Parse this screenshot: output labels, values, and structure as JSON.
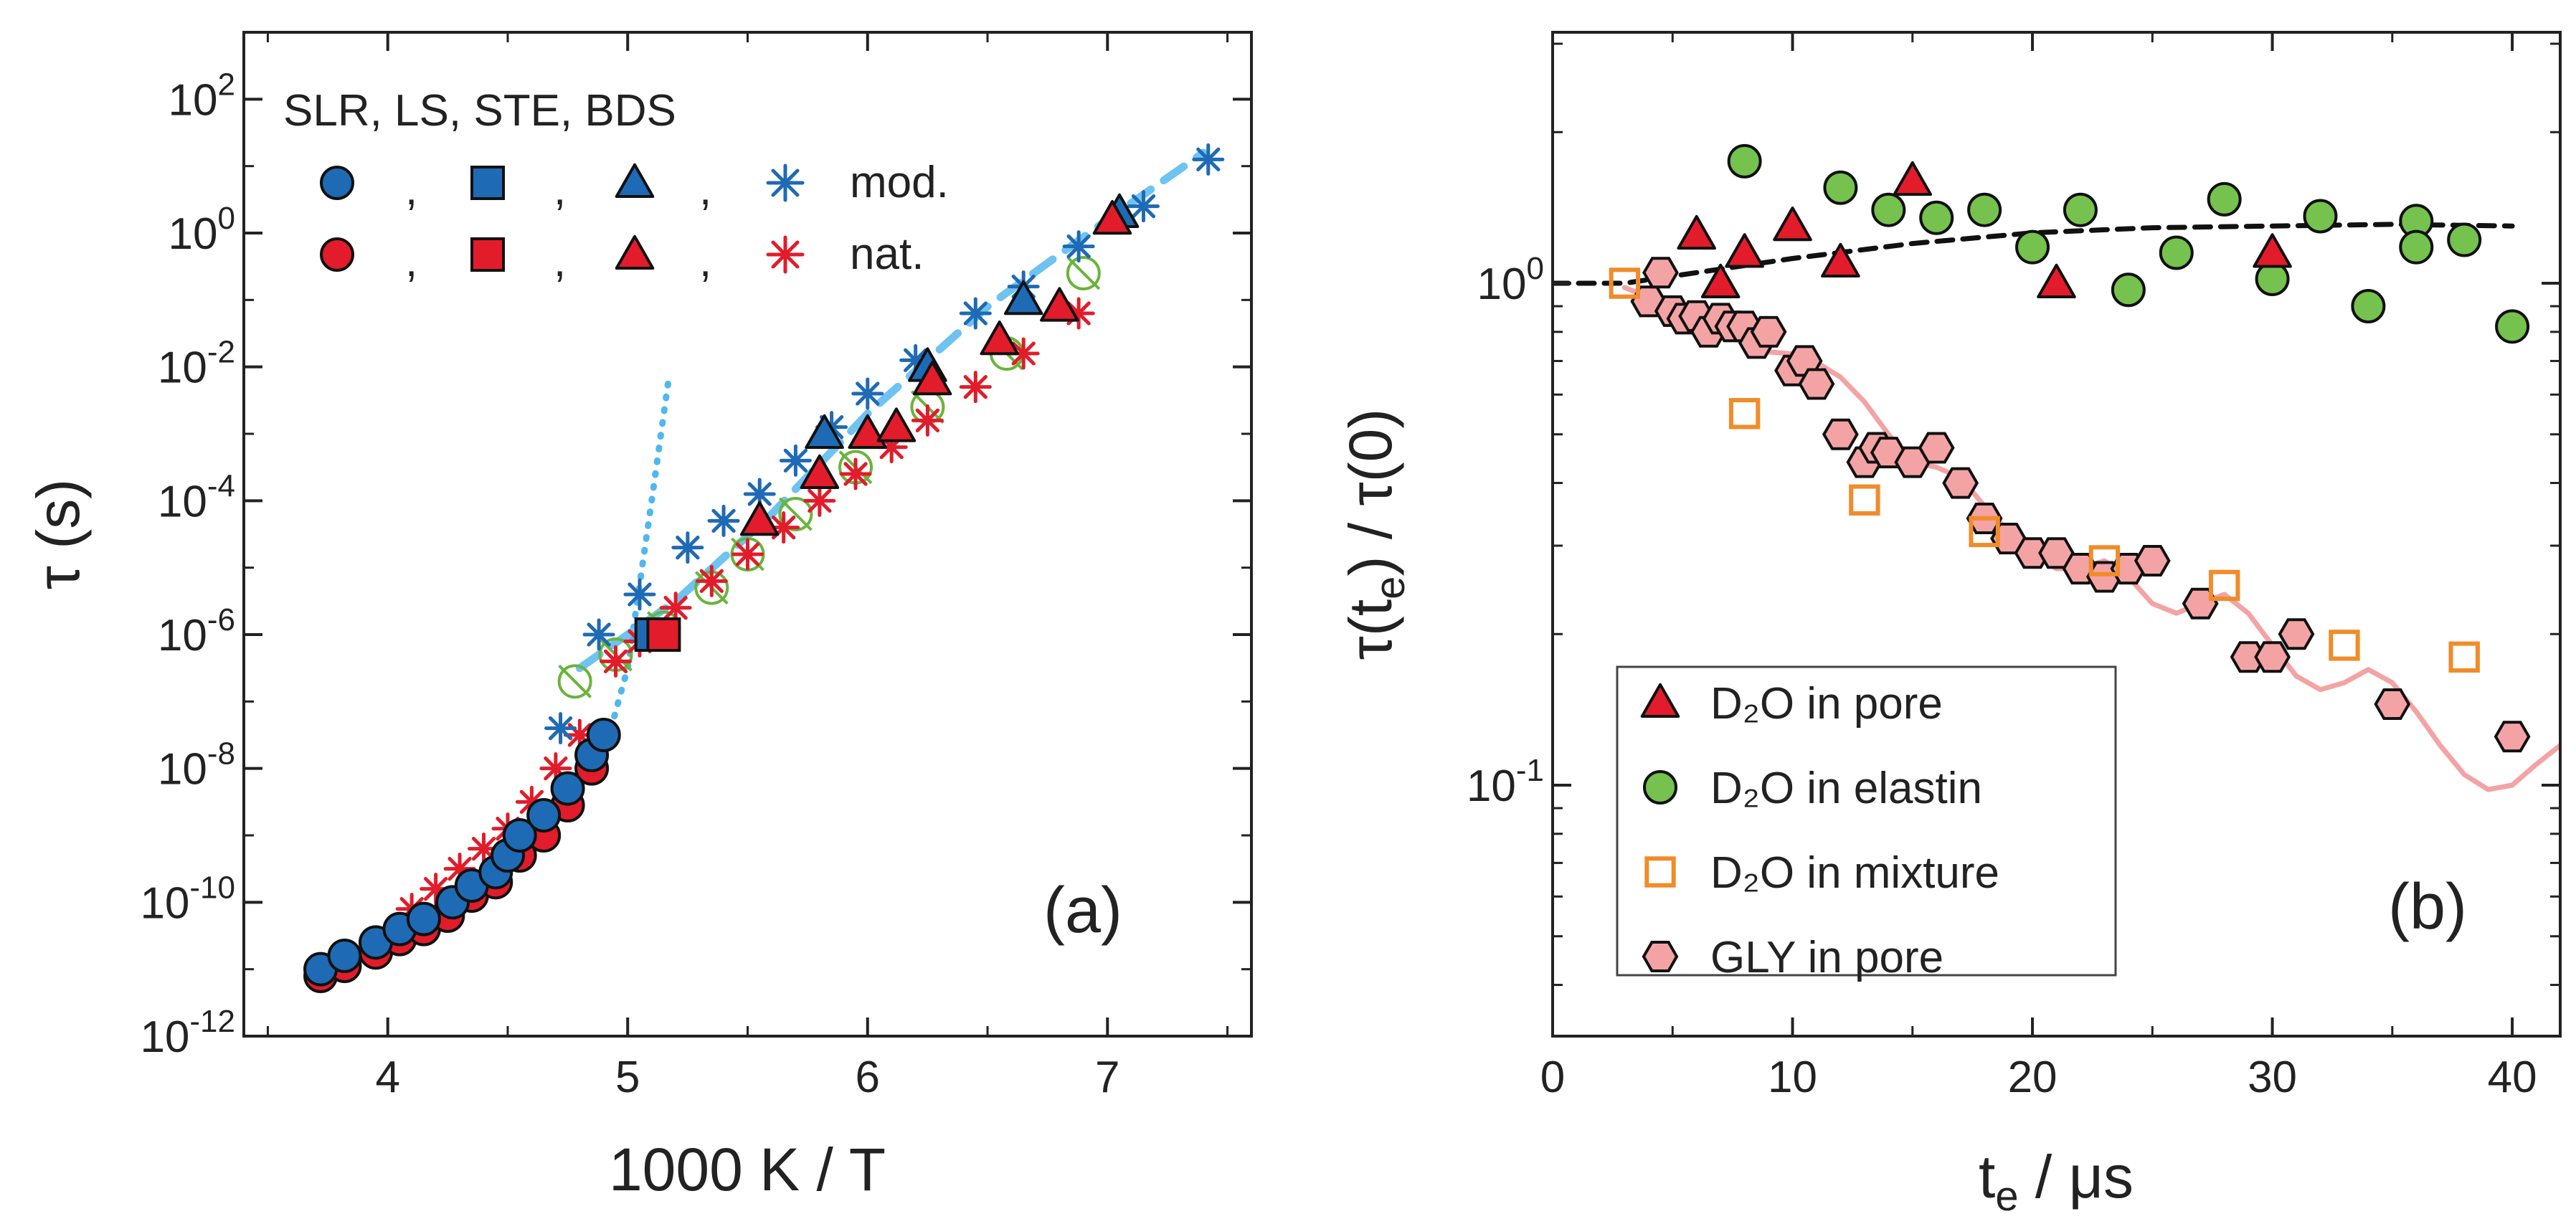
{
  "chart_data": [
    {
      "type": "scatter",
      "panel_label": "(a)",
      "xlabel": "1000 K / T",
      "ylabel": "τ (s)",
      "xlim": [
        3.4,
        7.6
      ],
      "ylim_log10": [
        -12,
        3
      ],
      "y_scale": "log",
      "x_ticks": [
        4,
        5,
        6,
        7
      ],
      "x_tick_labels": [
        "4",
        "5",
        "6",
        "7"
      ],
      "y_ticks_log10": [
        -12,
        -10,
        -8,
        -6,
        -4,
        -2,
        0,
        2
      ],
      "y_tick_labels": [
        {
          "base": "10",
          "exp": "-12"
        },
        {
          "base": "10",
          "exp": "-10"
        },
        {
          "base": "10",
          "exp": "-8"
        },
        {
          "base": "10",
          "exp": "-6"
        },
        {
          "base": "10",
          "exp": "-4"
        },
        {
          "base": "10",
          "exp": "-2"
        },
        {
          "base": "10",
          "exp": "0"
        },
        {
          "base": "10",
          "exp": "2"
        }
      ],
      "legend": {
        "header": "SLR,  LS,  STE,  BDS",
        "separators": [
          ",",
          ",",
          ","
        ],
        "rows": [
          {
            "label": "mod.",
            "color": "#1f6ab4"
          },
          {
            "label": "nat.",
            "color": "#e21c2a"
          }
        ]
      },
      "series": [
        {
          "name": "SLR mod.",
          "marker": "circle",
          "color": "#1f6ab4",
          "points": [
            [
              3.72,
              -11.0
            ],
            [
              3.82,
              -10.8
            ],
            [
              3.95,
              -10.6
            ],
            [
              4.05,
              -10.4
            ],
            [
              4.15,
              -10.25
            ],
            [
              4.27,
              -10.0
            ],
            [
              4.35,
              -9.75
            ],
            [
              4.45,
              -9.55
            ],
            [
              4.5,
              -9.3
            ],
            [
              4.55,
              -9.0
            ],
            [
              4.65,
              -8.7
            ],
            [
              4.75,
              -8.3
            ],
            [
              4.85,
              -7.8
            ],
            [
              4.9,
              -7.5
            ]
          ]
        },
        {
          "name": "SLR nat.",
          "marker": "circle",
          "color": "#e21c2a",
          "points": [
            [
              3.72,
              -11.1
            ],
            [
              3.82,
              -10.95
            ],
            [
              3.95,
              -10.75
            ],
            [
              4.05,
              -10.55
            ],
            [
              4.15,
              -10.4
            ],
            [
              4.25,
              -10.2
            ],
            [
              4.35,
              -9.9
            ],
            [
              4.45,
              -9.7
            ],
            [
              4.55,
              -9.3
            ],
            [
              4.65,
              -9.0
            ],
            [
              4.75,
              -8.55
            ],
            [
              4.85,
              -8.0
            ]
          ]
        },
        {
          "name": "LS mod.",
          "marker": "square",
          "color": "#1f6ab4",
          "points": [
            [
              5.1,
              -6.0
            ]
          ]
        },
        {
          "name": "LS nat.",
          "marker": "square",
          "color": "#e21c2a",
          "points": [
            [
              5.15,
              -6.0
            ]
          ]
        },
        {
          "name": "STE mod.",
          "marker": "triangle",
          "color": "#1f6ab4",
          "points": [
            [
              5.82,
              -3.0
            ],
            [
              6.25,
              -2.0
            ],
            [
              6.65,
              -1.0
            ],
            [
              7.05,
              0.3
            ]
          ]
        },
        {
          "name": "STE nat.",
          "marker": "triangle",
          "color": "#e21c2a",
          "points": [
            [
              5.55,
              -4.3
            ],
            [
              5.8,
              -3.6
            ],
            [
              6.0,
              -3.0
            ],
            [
              6.12,
              -2.9
            ],
            [
              6.27,
              -2.2
            ],
            [
              6.55,
              -1.6
            ],
            [
              6.8,
              -1.1
            ],
            [
              7.02,
              0.2
            ]
          ]
        },
        {
          "name": "BDS mod.",
          "marker": "asterisk",
          "color": "#1f6ab4",
          "points": [
            [
              4.72,
              -7.4
            ],
            [
              4.88,
              -6.0
            ],
            [
              5.05,
              -5.4
            ],
            [
              5.25,
              -4.7
            ],
            [
              5.4,
              -4.3
            ],
            [
              5.55,
              -3.9
            ],
            [
              5.7,
              -3.4
            ],
            [
              5.85,
              -2.9
            ],
            [
              6.0,
              -2.4
            ],
            [
              6.2,
              -1.9
            ],
            [
              6.45,
              -1.2
            ],
            [
              6.65,
              -0.8
            ],
            [
              6.88,
              -0.2
            ],
            [
              7.15,
              0.4
            ],
            [
              7.42,
              1.1
            ]
          ]
        },
        {
          "name": "BDS nat.",
          "marker": "asterisk",
          "color": "#e21c2a",
          "points": [
            [
              4.1,
              -10.1
            ],
            [
              4.2,
              -9.8
            ],
            [
              4.3,
              -9.5
            ],
            [
              4.4,
              -9.2
            ],
            [
              4.5,
              -8.9
            ],
            [
              4.6,
              -8.5
            ],
            [
              4.7,
              -8.0
            ],
            [
              4.8,
              -7.5
            ],
            [
              4.95,
              -6.4
            ],
            [
              5.05,
              -6.1
            ],
            [
              5.2,
              -5.6
            ],
            [
              5.35,
              -5.2
            ],
            [
              5.5,
              -4.8
            ],
            [
              5.65,
              -4.4
            ],
            [
              5.8,
              -4.0
            ],
            [
              5.95,
              -3.6
            ],
            [
              6.1,
              -3.2
            ],
            [
              6.25,
              -2.8
            ],
            [
              6.45,
              -2.3
            ],
            [
              6.65,
              -1.8
            ],
            [
              6.88,
              -1.2
            ]
          ]
        },
        {
          "name": "additional (green open)",
          "marker": "open-circle-cross",
          "color": "#6ab43c",
          "points": [
            [
              4.78,
              -6.7
            ],
            [
              4.95,
              -6.3
            ],
            [
              5.15,
              -5.9
            ],
            [
              5.35,
              -5.3
            ],
            [
              5.5,
              -4.8
            ],
            [
              5.7,
              -4.2
            ],
            [
              5.95,
              -3.5
            ],
            [
              6.25,
              -2.6
            ],
            [
              6.58,
              -1.8
            ],
            [
              6.9,
              -0.6
            ]
          ]
        }
      ],
      "fits": [
        {
          "name": "dotted fit",
          "style": "dotted",
          "color": "#4fb8ef",
          "points": [
            [
              3.72,
              -11.0
            ],
            [
              4.2,
              -10.1
            ],
            [
              4.6,
              -9.1
            ],
            [
              4.9,
              -7.8
            ],
            [
              5.0,
              -6.5
            ],
            [
              5.1,
              -4.0
            ],
            [
              5.17,
              -2.2
            ]
          ]
        },
        {
          "name": "dashed fit",
          "style": "dashed",
          "color": "#6ec3f1",
          "points": [
            [
              4.8,
              -6.5
            ],
            [
              5.2,
              -5.5
            ],
            [
              5.6,
              -4.2
            ],
            [
              6.0,
              -2.7
            ],
            [
              6.5,
              -1.1
            ],
            [
              7.0,
              0.2
            ],
            [
              7.4,
              1.2
            ]
          ]
        }
      ]
    },
    {
      "type": "scatter",
      "panel_label": "(b)",
      "xlabel": "t_e / μs",
      "ylabel": "τ(t_e) / τ(0)",
      "xlim": [
        0,
        42
      ],
      "ylim_log10": [
        -1.5,
        0.5
      ],
      "y_scale": "log",
      "x_ticks": [
        0,
        10,
        20,
        30,
        40
      ],
      "x_tick_labels": [
        "0",
        "10",
        "20",
        "30",
        "40"
      ],
      "y_ticks_log10": [
        -1,
        0
      ],
      "y_tick_labels": [
        {
          "base": "10",
          "exp": "-1"
        },
        {
          "base": "10",
          "exp": "0"
        }
      ],
      "legend": {
        "entries": [
          {
            "marker": "triangle",
            "color": "#e21c2a",
            "label": "D₂O in pore"
          },
          {
            "marker": "circle",
            "color": "#75c24e",
            "label": "D₂O in elastin"
          },
          {
            "marker": "open-square",
            "color": "#f08c2a",
            "label": "D₂O in mixture"
          },
          {
            "marker": "hexagon",
            "color": "#f4a3a4",
            "label": "GLY in pore"
          }
        ]
      },
      "series": [
        {
          "name": "D₂O in pore",
          "marker": "triangle",
          "color": "#e21c2a",
          "points": [
            [
              6,
              1.25
            ],
            [
              7,
              1.0
            ],
            [
              8,
              1.15
            ],
            [
              10,
              1.3
            ],
            [
              12,
              1.1
            ],
            [
              15,
              1.6
            ],
            [
              21,
              1.0
            ],
            [
              30,
              1.15
            ]
          ]
        },
        {
          "name": "D₂O in elastin",
          "marker": "circle",
          "color": "#75c24e",
          "points": [
            [
              8,
              1.75
            ],
            [
              12,
              1.55
            ],
            [
              14,
              1.4
            ],
            [
              16,
              1.35
            ],
            [
              18,
              1.4
            ],
            [
              20,
              1.18
            ],
            [
              22,
              1.4
            ],
            [
              24,
              0.97
            ],
            [
              26,
              1.15
            ],
            [
              28,
              1.47
            ],
            [
              30,
              1.02
            ],
            [
              32,
              1.36
            ],
            [
              34,
              0.9
            ],
            [
              36,
              1.33
            ],
            [
              36,
              1.18
            ],
            [
              38,
              1.22
            ],
            [
              40,
              0.82
            ]
          ]
        },
        {
          "name": "D₂O in mixture",
          "marker": "open-square",
          "color": "#f08c2a",
          "points": [
            [
              3,
              1.0
            ],
            [
              8,
              0.55
            ],
            [
              13,
              0.37
            ],
            [
              18,
              0.32
            ],
            [
              23,
              0.28
            ],
            [
              28,
              0.25
            ],
            [
              33,
              0.19
            ],
            [
              38,
              0.18
            ]
          ]
        },
        {
          "name": "GLY in pore",
          "marker": "hexagon",
          "color": "#f4a3a4",
          "points": [
            [
              4,
              0.92
            ],
            [
              4.5,
              1.05
            ],
            [
              5,
              0.88
            ],
            [
              5.5,
              0.85
            ],
            [
              6,
              0.86
            ],
            [
              6.5,
              0.8
            ],
            [
              7,
              0.85
            ],
            [
              7.5,
              0.82
            ],
            [
              8,
              0.82
            ],
            [
              8.5,
              0.76
            ],
            [
              9,
              0.8
            ],
            [
              10,
              0.67
            ],
            [
              10.5,
              0.7
            ],
            [
              11,
              0.63
            ],
            [
              12,
              0.5
            ],
            [
              13,
              0.44
            ],
            [
              13.5,
              0.47
            ],
            [
              14,
              0.46
            ],
            [
              15,
              0.44
            ],
            [
              16,
              0.47
            ],
            [
              17,
              0.4
            ],
            [
              18,
              0.34
            ],
            [
              19,
              0.31
            ],
            [
              20,
              0.29
            ],
            [
              21,
              0.29
            ],
            [
              22,
              0.27
            ],
            [
              23,
              0.26
            ],
            [
              24,
              0.27
            ],
            [
              25,
              0.28
            ],
            [
              27,
              0.23
            ],
            [
              29,
              0.18
            ],
            [
              30,
              0.18
            ],
            [
              31,
              0.2
            ],
            [
              35,
              0.145
            ],
            [
              40,
              0.125
            ]
          ]
        }
      ],
      "fits": [
        {
          "name": "dashed model",
          "style": "dashed",
          "color": "#111111",
          "points": [
            [
              0,
              1.0
            ],
            [
              3,
              1.0
            ],
            [
              6,
              1.05
            ],
            [
              10,
              1.12
            ],
            [
              15,
              1.2
            ],
            [
              20,
              1.26
            ],
            [
              25,
              1.29
            ],
            [
              30,
              1.3
            ],
            [
              35,
              1.31
            ],
            [
              40,
              1.3
            ]
          ]
        },
        {
          "name": "pink model",
          "style": "solid",
          "color": "#f4a3a4",
          "points": [
            [
              3,
              0.98
            ],
            [
              5,
              0.9
            ],
            [
              7,
              0.8
            ],
            [
              9,
              0.73
            ],
            [
              10.5,
              0.72
            ],
            [
              12,
              0.65
            ],
            [
              13,
              0.58
            ],
            [
              14,
              0.5
            ],
            [
              15,
              0.44
            ],
            [
              16,
              0.43
            ],
            [
              17,
              0.41
            ],
            [
              18,
              0.36
            ],
            [
              19,
              0.32
            ],
            [
              20,
              0.29
            ],
            [
              21,
              0.27
            ],
            [
              22,
              0.27
            ],
            [
              23,
              0.28
            ],
            [
              24,
              0.26
            ],
            [
              25,
              0.23
            ],
            [
              26,
              0.22
            ],
            [
              27,
              0.23
            ],
            [
              28,
              0.24
            ],
            [
              29,
              0.22
            ],
            [
              30,
              0.19
            ],
            [
              31,
              0.165
            ],
            [
              32,
              0.155
            ],
            [
              33,
              0.16
            ],
            [
              34,
              0.17
            ],
            [
              35,
              0.16
            ],
            [
              36,
              0.14
            ],
            [
              37,
              0.12
            ],
            [
              38,
              0.105
            ],
            [
              39,
              0.098
            ],
            [
              40,
              0.1
            ],
            [
              41,
              0.11
            ],
            [
              42,
              0.12
            ]
          ]
        }
      ]
    }
  ]
}
